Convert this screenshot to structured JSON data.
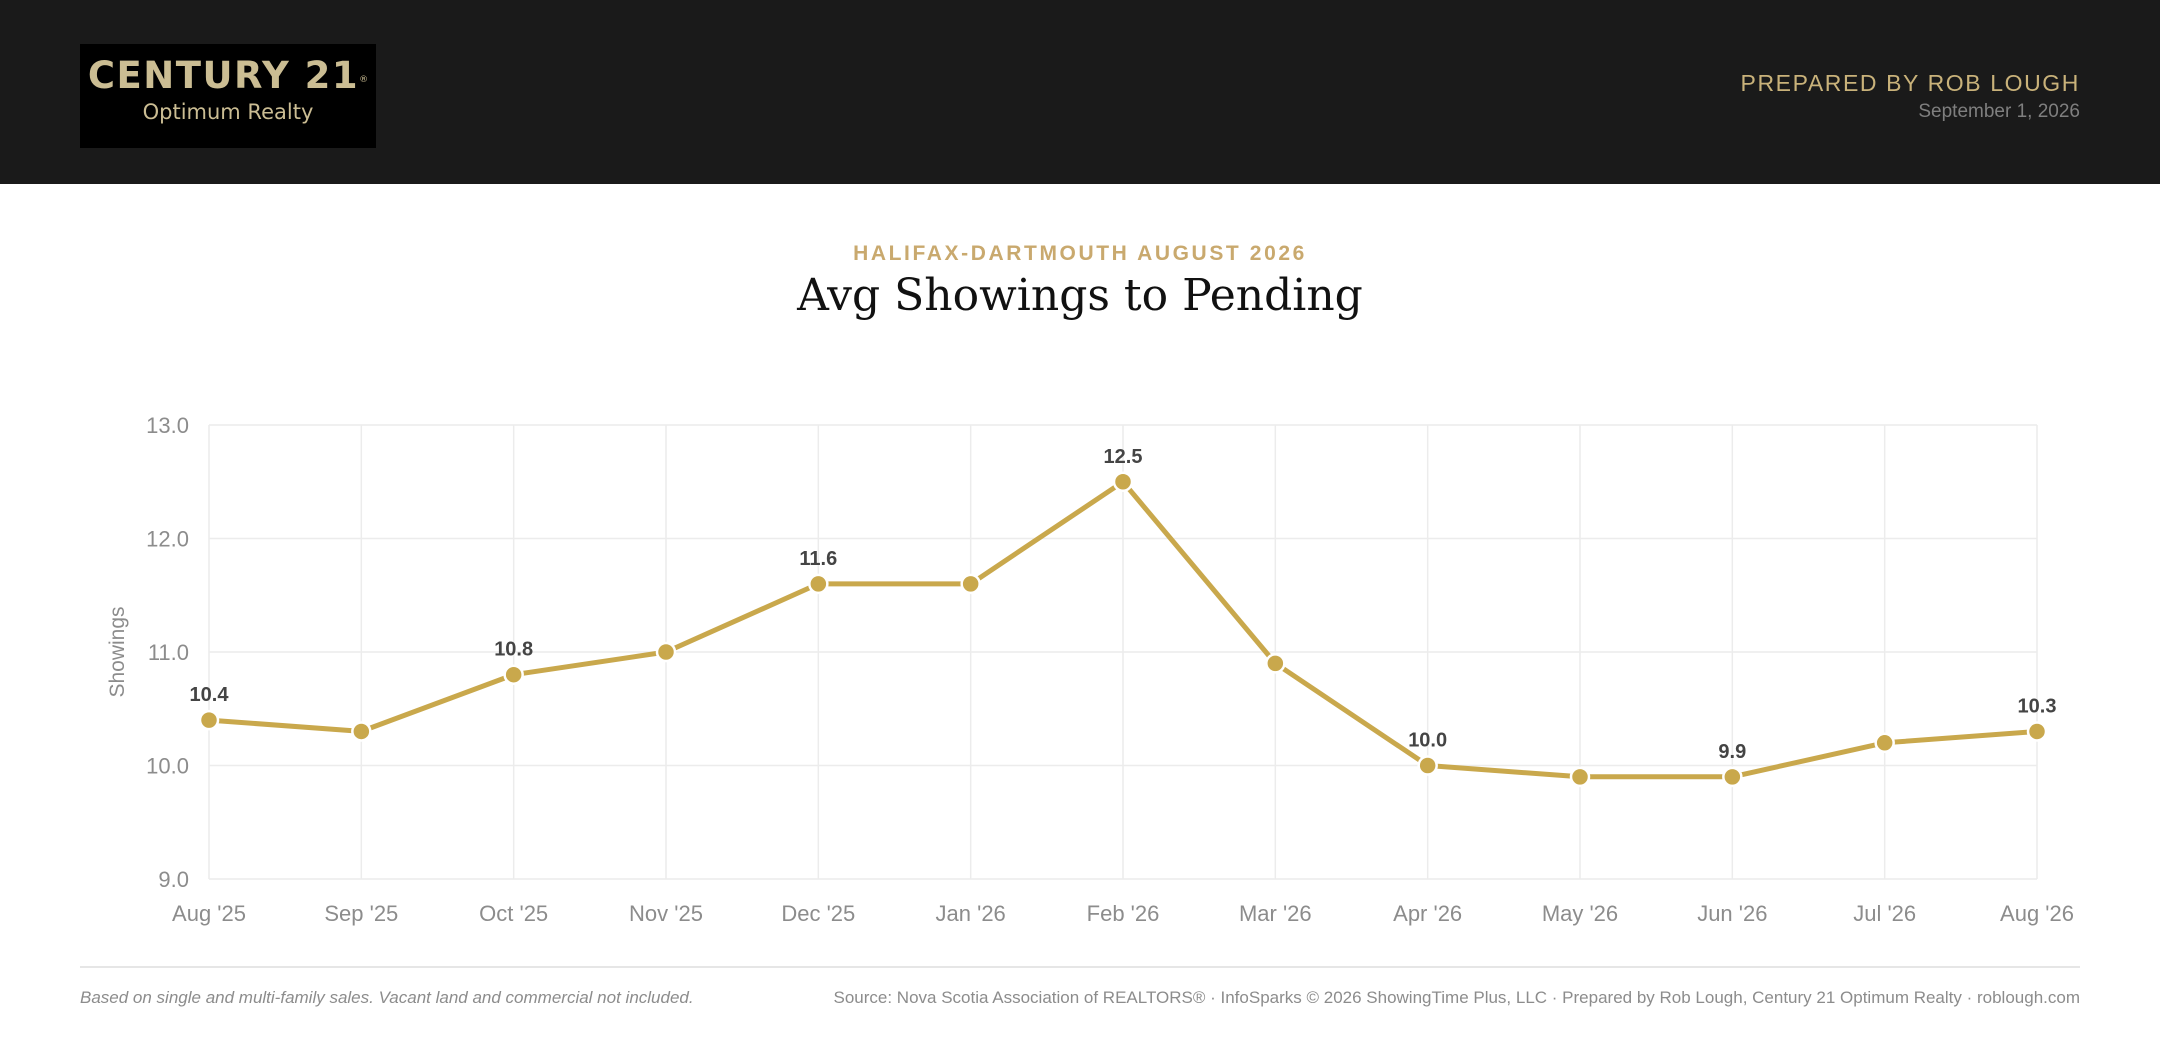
{
  "header": {
    "logo_name": "CENTURY 21",
    "logo_mark": "®",
    "logo_sub": "Optimum Realty",
    "prepared_by": "PREPARED BY ROB LOUGH",
    "date": "September 1, 2026"
  },
  "eyebrow": "HALIFAX-DARTMOUTH AUGUST 2026",
  "title": "Avg Showings to Pending",
  "footer": {
    "note": "Based on single and multi-family sales. Vacant land and commercial not included.",
    "source": "Source: Nova Scotia Association of REALTORS® · InfoSparks © 2026 ShowingTime Plus, LLC · Prepared by Rob Lough, Century 21 Optimum Realty · roblough.com"
  },
  "colors": {
    "header_bg": "#1a1a1a",
    "accent_gold": "#c9a96e",
    "line": "#c9a84c",
    "grid": "#ececec",
    "tick_text": "#8c8c8c",
    "label_text": "#444444"
  },
  "chart_data": {
    "type": "line",
    "title": "",
    "xlabel": "",
    "ylabel": "Showings",
    "ylim": [
      9.0,
      13.0
    ],
    "yticks": [
      "13.0",
      "12.0",
      "11.0",
      "10.0",
      "9.0"
    ],
    "categories": [
      "Aug '25",
      "Sep '25",
      "Oct '25",
      "Nov '25",
      "Dec '25",
      "Jan '26",
      "Feb '26",
      "Mar '26",
      "Apr '26",
      "May '26",
      "Jun '26",
      "Jul '26",
      "Aug '26"
    ],
    "series": [
      {
        "values": [
          10.4,
          10.3,
          10.8,
          11.0,
          11.6,
          11.6,
          12.5,
          10.9,
          10.0,
          9.9,
          9.9,
          10.2,
          10.3
        ]
      }
    ],
    "data_labels": [
      {
        "index": 0,
        "text": "10.4"
      },
      {
        "index": 2,
        "text": "10.8"
      },
      {
        "index": 4,
        "text": "11.6"
      },
      {
        "index": 6,
        "text": "12.5"
      },
      {
        "index": 8,
        "text": "10.0"
      },
      {
        "index": 10,
        "text": "9.9"
      },
      {
        "index": 12,
        "text": "10.3"
      }
    ],
    "grid": true,
    "legend": "none"
  }
}
